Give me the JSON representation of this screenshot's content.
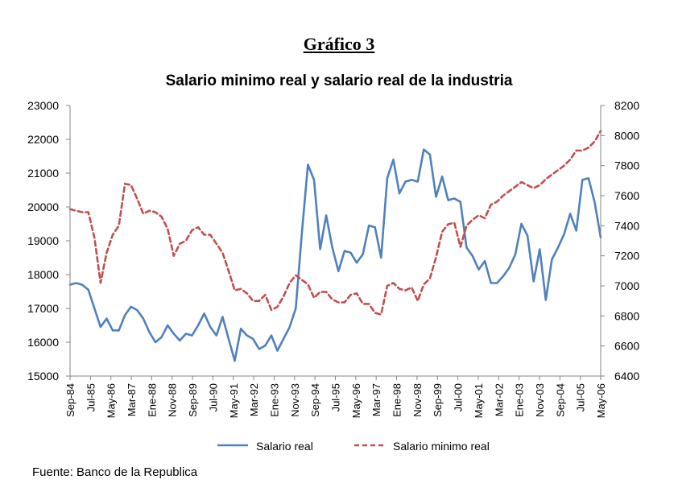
{
  "figure_label": "Gráfico 3",
  "source_note": "Fuente: Banco de la Republica",
  "colors": {
    "salario_real": "#4f81bd",
    "salario_minimo": "#c0504d",
    "axis": "#868686"
  },
  "chart_data": {
    "type": "line",
    "title": "Salario minimo real y salario real de la industria",
    "xlabel": "",
    "ylabel_left": "",
    "ylabel_right": "",
    "x_tick_labels": [
      "Sep-84",
      "Jul-85",
      "May-86",
      "Mar-87",
      "Ene-88",
      "Nov-88",
      "Sep-89",
      "Jul-90",
      "May-91",
      "Mar-92",
      "Ene-93",
      "Nov-93",
      "Sep-94",
      "Jul-95",
      "May-96",
      "Mar-97",
      "Ene-98",
      "Nov-98",
      "Sep-99",
      "Jul-00",
      "May-01",
      "Mar-02",
      "Ene-03",
      "Nov-03",
      "Sep-04",
      "Jul-05",
      "May-06"
    ],
    "y_left": {
      "min": 15000,
      "max": 23000,
      "ticks": [
        15000,
        16000,
        17000,
        18000,
        19000,
        20000,
        21000,
        22000,
        23000
      ]
    },
    "y_right": {
      "min": 6400,
      "max": 8200,
      "ticks": [
        6400,
        6600,
        6800,
        7000,
        7200,
        7400,
        7600,
        7800,
        8000,
        8200
      ]
    },
    "legend_position": "bottom",
    "series": [
      {
        "name": "Salario real",
        "axis": "left",
        "style": "solid",
        "values": [
          17700,
          17750,
          17700,
          17550,
          17000,
          16450,
          16700,
          16350,
          16350,
          16800,
          17050,
          16950,
          16700,
          16300,
          16000,
          16150,
          16500,
          16250,
          16050,
          16250,
          16200,
          16500,
          16850,
          16450,
          16200,
          16750,
          16100,
          15450,
          16400,
          16200,
          16100,
          15800,
          15900,
          16200,
          15750,
          16100,
          16450,
          17000,
          19200,
          21250,
          20800,
          18750,
          19750,
          18800,
          18100,
          18700,
          18650,
          18350,
          18600,
          19450,
          19400,
          18500,
          20850,
          21400,
          20400,
          20750,
          20800,
          20750,
          21700,
          21550,
          20300,
          20900,
          20200,
          20250,
          20150,
          18800,
          18550,
          18150,
          18400,
          17750,
          17750,
          17950,
          18200,
          18600,
          19500,
          19150,
          17800,
          18750,
          17250,
          18450,
          18800,
          19200,
          19800,
          19300,
          20800,
          20850,
          20150,
          19100
        ]
      },
      {
        "name": "Salario minimo real",
        "axis": "right",
        "style": "dashed",
        "values": [
          7510,
          7500,
          7490,
          7490,
          7320,
          7020,
          7220,
          7340,
          7400,
          7680,
          7670,
          7580,
          7480,
          7500,
          7490,
          7460,
          7380,
          7200,
          7280,
          7300,
          7370,
          7390,
          7340,
          7340,
          7280,
          7220,
          7100,
          6970,
          6980,
          6950,
          6900,
          6900,
          6940,
          6840,
          6860,
          6930,
          7020,
          7070,
          7040,
          7010,
          6920,
          6960,
          6960,
          6910,
          6890,
          6890,
          6940,
          6950,
          6880,
          6880,
          6820,
          6810,
          7000,
          7020,
          6980,
          6970,
          6990,
          6900,
          7010,
          7050,
          7190,
          7360,
          7410,
          7420,
          7260,
          7400,
          7440,
          7470,
          7450,
          7540,
          7560,
          7600,
          7630,
          7660,
          7690,
          7670,
          7650,
          7670,
          7710,
          7740,
          7770,
          7800,
          7840,
          7900,
          7900,
          7920,
          7960,
          8030
        ]
      }
    ]
  }
}
